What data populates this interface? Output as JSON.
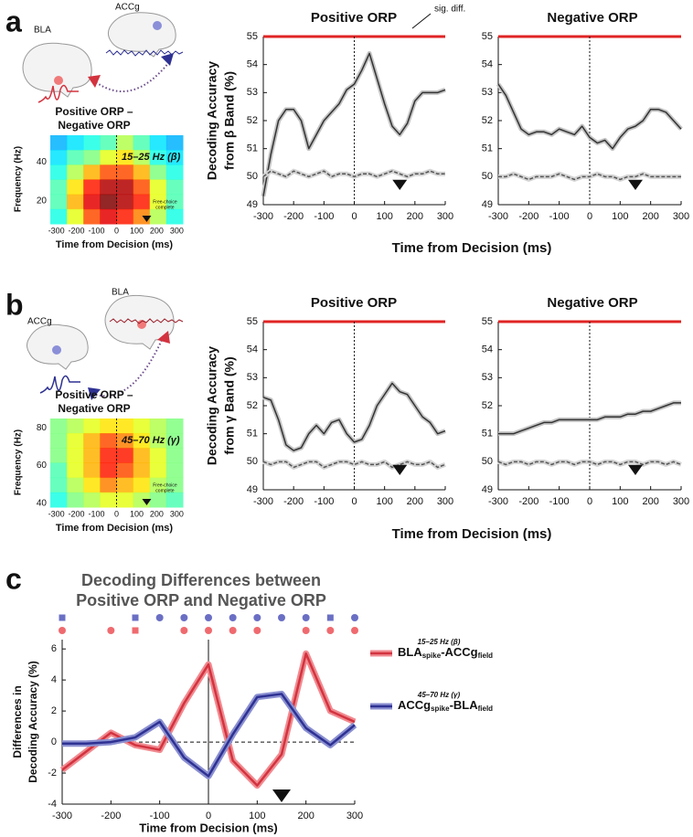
{
  "labels": {
    "panels": [
      "a",
      "b",
      "c"
    ],
    "a_regions": [
      "BLA",
      "ACCg"
    ],
    "b_regions": [
      "ACCg",
      "BLA"
    ]
  },
  "chart_data": [
    {
      "type": "heatmap",
      "title": [
        "Positive ORP –",
        "Negative ORP"
      ],
      "ylabel": "Frequency (Hz)",
      "xlabel": "Time from Decision (ms)",
      "annotation": "15–25 Hz (β)",
      "marker_label": [
        "Free-choice",
        "complete"
      ],
      "marker_x": 150,
      "vline": 0,
      "xlim": [
        -330,
        330
      ],
      "xticks": [
        -300,
        -200,
        -100,
        0,
        100,
        200,
        300
      ],
      "ylim": [
        8,
        54
      ],
      "yticks": [
        20,
        40
      ],
      "zlim": [
        0,
        1
      ],
      "z": [
        [
          0.3,
          0.35,
          0.4,
          0.45,
          0.55,
          0.45,
          0.35,
          0.3
        ],
        [
          0.35,
          0.45,
          0.5,
          0.6,
          0.65,
          0.55,
          0.4,
          0.35
        ],
        [
          0.4,
          0.55,
          0.7,
          0.8,
          0.8,
          0.7,
          0.5,
          0.4
        ],
        [
          0.45,
          0.65,
          0.85,
          0.95,
          0.95,
          0.8,
          0.6,
          0.45
        ],
        [
          0.45,
          0.7,
          0.9,
          1.0,
          0.95,
          0.85,
          0.6,
          0.45
        ],
        [
          0.4,
          0.6,
          0.8,
          0.9,
          0.85,
          0.75,
          0.55,
          0.4
        ]
      ]
    },
    {
      "type": "line",
      "title": "Positive ORP",
      "ylabel": [
        "Decoding Accuracy",
        "from β Band (%)"
      ],
      "xlabel": "Time from Decision (ms)",
      "annotation": "sig. diff.",
      "sig_bar": true,
      "sig_color": "#e02424",
      "vline": 0,
      "marker_x": 150,
      "x": [
        -300,
        -275,
        -250,
        -225,
        -200,
        -175,
        -150,
        -125,
        -100,
        -75,
        -50,
        -25,
        0,
        25,
        50,
        75,
        100,
        125,
        150,
        175,
        200,
        225,
        250,
        275,
        300
      ],
      "xlim": [
        -300,
        300
      ],
      "xticks": [
        -300,
        -200,
        -100,
        0,
        100,
        200,
        300
      ],
      "ylim": [
        49,
        55
      ],
      "yticks": [
        49,
        50,
        51,
        52,
        53,
        54,
        55
      ],
      "series": [
        {
          "color": "#333333",
          "band_color": "#c4c4c4",
          "dashed": false,
          "values": [
            49.3,
            50.8,
            52.0,
            52.4,
            52.4,
            52.0,
            51.0,
            51.5,
            52.0,
            52.3,
            52.6,
            53.1,
            53.3,
            53.8,
            54.4,
            53.5,
            52.6,
            51.8,
            51.5,
            51.9,
            52.7,
            53.0,
            53.0,
            53.0,
            53.1
          ]
        },
        {
          "color": "#555555",
          "band_color": "#d4d4d4",
          "dashed": true,
          "values": [
            50.0,
            50.2,
            50.1,
            50.0,
            50.2,
            50.1,
            50.0,
            50.1,
            50.2,
            50.0,
            50.1,
            50.1,
            50.0,
            50.1,
            50.1,
            50.0,
            50.1,
            50.2,
            50.1,
            50.0,
            50.1,
            50.1,
            50.2,
            50.1,
            50.1
          ]
        }
      ]
    },
    {
      "type": "line",
      "title": "Negative ORP",
      "sig_bar": true,
      "sig_color": "#e02424",
      "vline": 0,
      "marker_x": 150,
      "x": [
        -300,
        -275,
        -250,
        -225,
        -200,
        -175,
        -150,
        -125,
        -100,
        -75,
        -50,
        -25,
        0,
        25,
        50,
        75,
        100,
        125,
        150,
        175,
        200,
        225,
        250,
        275,
        300
      ],
      "xlim": [
        -300,
        300
      ],
      "xticks": [
        -300,
        -200,
        -100,
        0,
        100,
        200,
        300
      ],
      "ylim": [
        49,
        55
      ],
      "yticks": [
        49,
        50,
        51,
        52,
        53,
        54,
        55
      ],
      "series": [
        {
          "color": "#333333",
          "band_color": "#c4c4c4",
          "dashed": false,
          "values": [
            53.3,
            52.9,
            52.3,
            51.7,
            51.5,
            51.6,
            51.6,
            51.5,
            51.7,
            51.6,
            51.5,
            51.8,
            51.4,
            51.2,
            51.3,
            51.0,
            51.4,
            51.7,
            51.8,
            52.0,
            52.4,
            52.4,
            52.3,
            52.0,
            51.7
          ]
        },
        {
          "color": "#555555",
          "band_color": "#d4d4d4",
          "dashed": true,
          "values": [
            50.0,
            50.0,
            50.1,
            50.0,
            49.9,
            50.0,
            50.0,
            50.0,
            50.1,
            50.0,
            49.9,
            50.0,
            50.0,
            50.1,
            50.0,
            50.0,
            49.9,
            50.0,
            50.0,
            50.1,
            50.0,
            50.0,
            50.0,
            50.0,
            50.0
          ]
        }
      ]
    },
    {
      "type": "heatmap",
      "title": [
        "Positive ORP –",
        "Negative ORP"
      ],
      "ylabel": "Frequency (Hz)",
      "xlabel": "Time from Decision (ms)",
      "annotation": "45–70 Hz (γ)",
      "marker_label": [
        "Free-choice",
        "complete"
      ],
      "marker_x": 150,
      "vline": 0,
      "xlim": [
        -330,
        330
      ],
      "xticks": [
        -300,
        -200,
        -100,
        0,
        100,
        200,
        300
      ],
      "ylim": [
        38,
        85
      ],
      "yticks": [
        40,
        60,
        80
      ],
      "zlim": [
        0,
        1
      ],
      "z": [
        [
          0.5,
          0.55,
          0.6,
          0.65,
          0.65,
          0.6,
          0.55,
          0.5
        ],
        [
          0.5,
          0.6,
          0.7,
          0.8,
          0.75,
          0.65,
          0.55,
          0.5
        ],
        [
          0.5,
          0.6,
          0.7,
          0.85,
          0.85,
          0.7,
          0.6,
          0.5
        ],
        [
          0.45,
          0.6,
          0.7,
          0.85,
          0.8,
          0.7,
          0.6,
          0.5
        ],
        [
          0.45,
          0.55,
          0.65,
          0.75,
          0.7,
          0.65,
          0.55,
          0.5
        ],
        [
          0.4,
          0.5,
          0.55,
          0.6,
          0.6,
          0.55,
          0.5,
          0.45
        ]
      ]
    },
    {
      "type": "line",
      "title": "Positive ORP",
      "ylabel": [
        "Decoding Accuracy",
        "from γ Band (%)"
      ],
      "xlabel": "Time from Decision (ms)",
      "sig_bar": true,
      "sig_color": "#e02424",
      "vline": 0,
      "marker_x": 150,
      "x": [
        -300,
        -275,
        -250,
        -225,
        -200,
        -175,
        -150,
        -125,
        -100,
        -75,
        -50,
        -25,
        0,
        25,
        50,
        75,
        100,
        125,
        150,
        175,
        200,
        225,
        250,
        275,
        300
      ],
      "xlim": [
        -300,
        300
      ],
      "xticks": [
        -300,
        -200,
        -100,
        0,
        100,
        200,
        300
      ],
      "ylim": [
        49,
        55
      ],
      "yticks": [
        49,
        50,
        51,
        52,
        53,
        54,
        55
      ],
      "series": [
        {
          "color": "#333333",
          "band_color": "#c4c4c4",
          "dashed": false,
          "values": [
            52.3,
            52.2,
            51.5,
            50.6,
            50.4,
            50.5,
            51.0,
            51.3,
            51.0,
            51.4,
            51.5,
            51.0,
            50.7,
            50.8,
            51.3,
            52.0,
            52.4,
            52.8,
            52.5,
            52.4,
            52.0,
            51.6,
            51.4,
            51.0,
            51.1
          ]
        },
        {
          "color": "#555555",
          "band_color": "#d4d4d4",
          "dashed": true,
          "values": [
            50.0,
            49.9,
            50.0,
            50.0,
            49.8,
            49.9,
            50.0,
            50.0,
            49.8,
            49.9,
            50.0,
            50.0,
            49.9,
            50.0,
            49.9,
            49.9,
            50.0,
            49.8,
            49.9,
            50.0,
            49.9,
            49.9,
            50.0,
            49.8,
            49.9
          ]
        }
      ]
    },
    {
      "type": "line",
      "title": "Negative ORP",
      "sig_bar": true,
      "sig_color": "#e02424",
      "vline": 0,
      "marker_x": 150,
      "x": [
        -300,
        -275,
        -250,
        -225,
        -200,
        -175,
        -150,
        -125,
        -100,
        -75,
        -50,
        -25,
        0,
        25,
        50,
        75,
        100,
        125,
        150,
        175,
        200,
        225,
        250,
        275,
        300
      ],
      "xlim": [
        -300,
        300
      ],
      "xticks": [
        -300,
        -200,
        -100,
        0,
        100,
        200,
        300
      ],
      "ylim": [
        49,
        55
      ],
      "yticks": [
        49,
        50,
        51,
        52,
        53,
        54,
        55
      ],
      "series": [
        {
          "color": "#333333",
          "band_color": "#c4c4c4",
          "dashed": false,
          "values": [
            51.0,
            51.0,
            51.0,
            51.1,
            51.2,
            51.3,
            51.4,
            51.4,
            51.5,
            51.5,
            51.5,
            51.5,
            51.5,
            51.5,
            51.6,
            51.6,
            51.6,
            51.7,
            51.7,
            51.8,
            51.8,
            51.9,
            52.0,
            52.1,
            52.1
          ]
        },
        {
          "color": "#555555",
          "band_color": "#d4d4d4",
          "dashed": true,
          "values": [
            50.0,
            49.9,
            50.0,
            50.0,
            49.9,
            50.0,
            50.0,
            49.9,
            50.0,
            50.0,
            49.9,
            50.0,
            50.0,
            49.9,
            50.0,
            50.0,
            49.9,
            50.0,
            50.0,
            49.9,
            50.0,
            50.0,
            49.9,
            50.0,
            49.9
          ]
        }
      ]
    },
    {
      "type": "line",
      "title": [
        "Decoding Differences between",
        "Positive ORP and Negative ORP"
      ],
      "ylabel": [
        "Differences in",
        "Decoding Accuracy (%)"
      ],
      "xlabel": "Time from Decision (ms)",
      "vline": 0,
      "hline": 0,
      "marker_x": 150,
      "x": [
        -300,
        -250,
        -200,
        -150,
        -100,
        -50,
        0,
        50,
        100,
        150,
        200,
        250,
        300
      ],
      "xlim": [
        -300,
        300
      ],
      "xticks": [
        -300,
        -200,
        -100,
        0,
        100,
        200,
        300
      ],
      "ylim": [
        -4,
        6.6
      ],
      "yticks": [
        -4,
        -2,
        0,
        2,
        4,
        6
      ],
      "series": [
        {
          "band_label": "15–25 Hz (β)",
          "name_parts": [
            "BLA",
            "spike",
            "-ACCg",
            "field"
          ],
          "color": "#d3333f",
          "band_color": "#f08a90",
          "values": [
            -1.8,
            -0.6,
            0.6,
            -0.2,
            -0.5,
            2.5,
            5.0,
            -1.2,
            -2.8,
            -0.8,
            5.7,
            2.0,
            1.3
          ]
        },
        {
          "band_label": "45–70 Hz (γ)",
          "name_parts": [
            "ACCg",
            "spike",
            "-BLA",
            "field"
          ],
          "color": "#2e3192",
          "band_color": "#8a8fd0",
          "values": [
            -0.1,
            -0.1,
            0.0,
            0.3,
            1.3,
            -1.0,
            -2.2,
            0.5,
            2.9,
            3.1,
            0.9,
            -0.2,
            1.1
          ]
        }
      ],
      "sig_markers": [
        {
          "color": "#6a6fc4",
          "x": [
            -300,
            -150,
            -100,
            -50,
            0,
            50,
            100,
            150,
            200,
            250,
            300
          ],
          "shape": [
            "square",
            "square",
            "circle",
            "circle",
            "circle",
            "circle",
            "circle",
            "circle",
            "circle",
            "square",
            "circle"
          ]
        },
        {
          "color": "#ef6a6f",
          "x": [
            -300,
            -200,
            -150,
            -50,
            0,
            50,
            100,
            200,
            250,
            300
          ],
          "shape": [
            "circle",
            "circle",
            "square",
            "circle",
            "circle",
            "circle",
            "circle",
            "circle",
            "circle",
            "circle"
          ]
        }
      ]
    }
  ]
}
